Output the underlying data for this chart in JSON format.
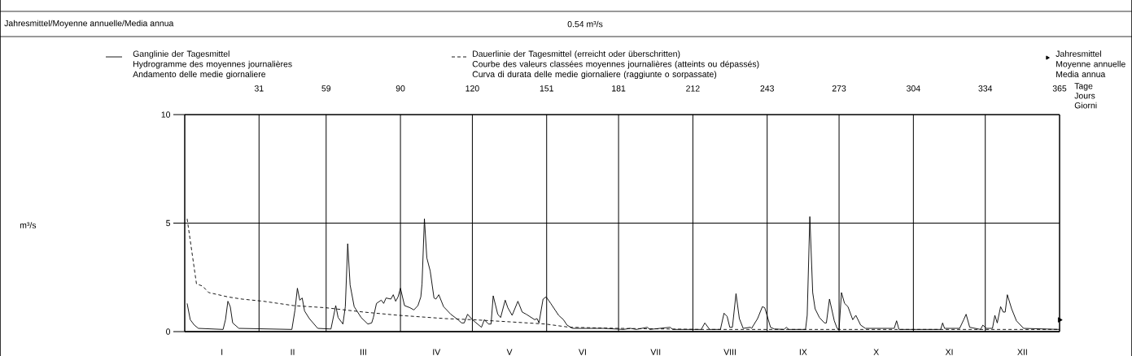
{
  "chart_data": {
    "type": "line",
    "annotations": [
      "Jahresmittel/Moyenne annuelle/Media annua",
      "0.54 m³/s",
      "m³/s",
      "I",
      "II",
      "III",
      "IV",
      "V",
      "VI",
      "VII",
      "VIII",
      "IX",
      "X",
      "XI",
      "XII"
    ],
    "xlabel": "Tage\nJours\nGiorni",
    "xlim": [
      0,
      365
    ],
    "ylim": [
      0,
      10
    ],
    "yticks": [
      0,
      5,
      10
    ],
    "xticks": [
      {
        "value": 0,
        "label": null
      },
      31,
      59,
      90,
      120,
      151,
      181,
      212,
      243,
      273,
      304,
      334,
      365
    ],
    "grid": true,
    "legend": "top",
    "series": [
      {
        "name": "Ganglinie der Tagesmittel\nHydrogramme des moyennes journalières\nAndamento delle medie giornaliere",
        "color": "#000000",
        "line_style": "solid",
        "x": [
          1,
          2.3,
          4,
          5.7,
          16,
          17,
          18,
          19,
          20,
          22.6,
          44.7,
          46,
          47,
          48,
          49,
          50,
          52,
          55.5,
          61,
          63,
          64,
          66,
          67,
          68,
          69,
          70.7,
          73.6,
          76.4,
          78,
          78.7,
          80,
          82,
          83,
          84,
          86,
          87,
          88,
          89,
          90,
          91.7,
          94,
          95.6,
          97.3,
          98.5,
          99,
          100,
          101,
          102.4,
          104,
          104.8,
          106,
          108,
          111,
          114,
          115.5,
          116.6,
          118,
          120,
          123.8,
          125,
          126.7,
          127.8,
          128.7,
          130.6,
          131.8,
          133.7,
          134.8,
          136.6,
          139,
          140.8,
          142.5,
          146,
          147,
          147.8,
          149.5,
          150.8,
          152.7,
          156,
          158,
          159.5,
          161.8,
          175,
          183,
          186,
          188.4,
          193,
          194,
          202.5,
          203.6,
          215.5,
          217,
          219,
          223.5,
          225,
          226.3,
          227.4,
          228.5,
          230,
          231.4,
          233,
          236,
          236.5,
          239,
          241,
          242,
          244.4,
          246,
          250,
          251,
          252,
          259,
          259.7,
          260.8,
          262,
          263,
          264.8,
          266.9,
          267.7,
          269,
          271,
          272.2,
          273,
          274,
          275.3,
          276.7,
          278.7,
          280,
          282,
          284,
          296,
          297,
          298,
          315.4,
          316.2,
          317,
          323.3,
          325,
          326,
          327.5,
          332,
          333,
          334.4,
          337,
          338,
          339,
          340.4,
          341.5,
          342.3,
          343.2,
          345,
          347,
          350,
          365
        ],
        "values": [
          1.3,
          0.55,
          0.3,
          0.15,
          0.1,
          0.55,
          1.4,
          1.15,
          0.4,
          0.15,
          0.1,
          1.0,
          2.0,
          1.45,
          1.55,
          0.95,
          0.6,
          0.15,
          0.12,
          1.2,
          0.65,
          0.35,
          1.15,
          4.05,
          2.15,
          1.15,
          0.65,
          0.35,
          0.4,
          0.65,
          1.3,
          1.45,
          1.3,
          1.55,
          1.5,
          1.7,
          1.4,
          1.6,
          2.0,
          1.2,
          1.1,
          1.0,
          1.2,
          1.6,
          2.2,
          5.2,
          3.4,
          2.8,
          1.55,
          1.5,
          1.7,
          1.15,
          0.8,
          0.55,
          0.4,
          0.4,
          0.8,
          0.55,
          0.2,
          0.55,
          0.35,
          0.35,
          1.65,
          0.8,
          0.65,
          1.45,
          1.1,
          0.75,
          1.4,
          0.9,
          0.8,
          0.55,
          0.6,
          0.4,
          1.5,
          1.6,
          1.3,
          0.75,
          0.55,
          0.3,
          0.15,
          0.15,
          0.1,
          0.15,
          0.1,
          0.2,
          0.1,
          0.2,
          0.1,
          0.1,
          0.4,
          0.1,
          0.1,
          0.85,
          0.7,
          0.2,
          0.2,
          1.75,
          0.6,
          0.15,
          0.2,
          0.15,
          0.6,
          1.15,
          1.1,
          0.2,
          0.12,
          0.1,
          0.2,
          0.1,
          0.1,
          0.75,
          5.3,
          1.8,
          1.05,
          0.65,
          0.4,
          0.4,
          1.5,
          0.5,
          0.15,
          0.1,
          1.8,
          1.3,
          1.15,
          0.55,
          0.75,
          0.3,
          0.15,
          0.15,
          0.5,
          0.1,
          0.1,
          0.4,
          0.15,
          0.15,
          0.55,
          0.8,
          0.2,
          0.1,
          0.3,
          0.15,
          0.15,
          0.75,
          0.4,
          1.15,
          0.9,
          0.9,
          1.7,
          1.05,
          0.5,
          0.15,
          0.1
        ]
      },
      {
        "name": "Dauerlinie der Tagesmittel (erreicht oder überschritten)\nCourbe des valeurs classées moyennes journalières (atteints ou dépassés)\nCurva di durata delle medie giornaliere (raggiunte o sorpassate)",
        "color": "#000000",
        "line_style": "dashed",
        "x": [
          1,
          4.9,
          7.4,
          10,
          18,
          23.8,
          32.8,
          45.3,
          58.9,
          74.7,
          89.4,
          108.7,
          120,
          135.7,
          150.4,
          160.6,
          181,
          215,
          365
        ],
        "values": [
          5.2,
          2.2,
          2.1,
          1.8,
          1.6,
          1.5,
          1.4,
          1.2,
          1.1,
          0.9,
          0.75,
          0.6,
          0.55,
          0.45,
          0.35,
          0.2,
          0.15,
          0.1,
          0.1
        ]
      },
      {
        "type": "scatter",
        "name": "Jahresmittel\nMoyenne annuelle\nMedia annua",
        "color": "#000000",
        "marker": "triangle",
        "x": [
          365
        ],
        "values": [
          0.54
        ]
      }
    ]
  }
}
